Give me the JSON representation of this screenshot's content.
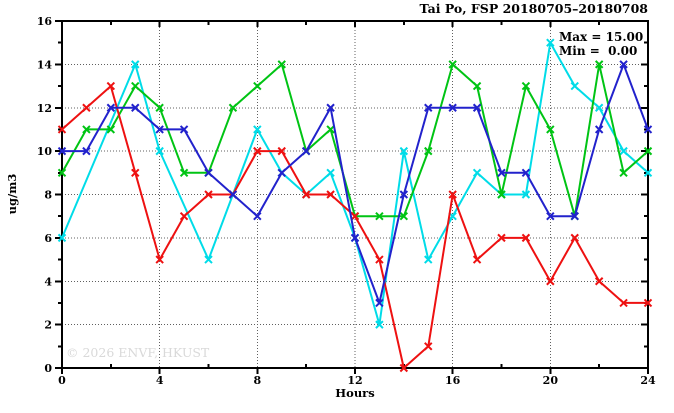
{
  "chart_data": {
    "type": "line",
    "title": "Tai Po, FSP 20180705–20180708",
    "xlabel": "Hours",
    "ylabel": "ug/m3",
    "watermark": "© 2026 ENVF, HKUST",
    "annotations": {
      "max_label": "Max = 15.00",
      "min_label": "Min =  0.00"
    },
    "stats": {
      "max": 15.0,
      "min": 0.0
    },
    "xlim": [
      0,
      24
    ],
    "ylim": [
      0,
      16
    ],
    "xticks_major": [
      0,
      4,
      8,
      12,
      16,
      20,
      24
    ],
    "xticks_minor": [
      2,
      6,
      10,
      14,
      18,
      22
    ],
    "yticks_major": [
      0,
      2,
      4,
      6,
      8,
      10,
      12,
      14,
      16
    ],
    "yticks_minor": [
      1,
      3,
      5,
      7,
      9,
      11,
      13,
      15
    ],
    "x_gridlines": [
      4,
      8,
      12,
      16,
      20
    ],
    "y_gridlines": [
      2,
      4,
      6,
      8,
      10,
      12,
      14
    ],
    "grid": true,
    "legend_position": "top-right-inside",
    "x": [
      0,
      1,
      2,
      3,
      4,
      5,
      6,
      7,
      8,
      9,
      10,
      11,
      12,
      13,
      14,
      15,
      16,
      17,
      18,
      19,
      20,
      21,
      22,
      23,
      24
    ],
    "series": [
      {
        "name": "cyan-series",
        "color": "#00dce8",
        "values": [
          6,
          null,
          null,
          14,
          10,
          null,
          5,
          8,
          11,
          9,
          8,
          9,
          6,
          2,
          10,
          5,
          7,
          9,
          8,
          8,
          15,
          13,
          12,
          10,
          9
        ]
      },
      {
        "name": "green-series",
        "color": "#00c414",
        "values": [
          9,
          11,
          11,
          13,
          12,
          9,
          9,
          12,
          13,
          14,
          10,
          11,
          7,
          7,
          7,
          10,
          14,
          13,
          8,
          13,
          11,
          7,
          14,
          9,
          10
        ]
      },
      {
        "name": "red-series",
        "color": "#ee1111",
        "values": [
          11,
          12,
          13,
          9,
          5,
          7,
          8,
          8,
          10,
          10,
          8,
          8,
          7,
          5,
          0,
          1,
          8,
          5,
          6,
          6,
          4,
          6,
          4,
          3,
          3
        ]
      },
      {
        "name": "blue-series",
        "color": "#2222cc",
        "values": [
          10,
          10,
          12,
          12,
          11,
          11,
          9,
          8,
          7,
          9,
          10,
          12,
          6,
          3,
          8,
          12,
          12,
          12,
          9,
          9,
          7,
          7,
          11,
          14,
          11
        ]
      }
    ]
  }
}
